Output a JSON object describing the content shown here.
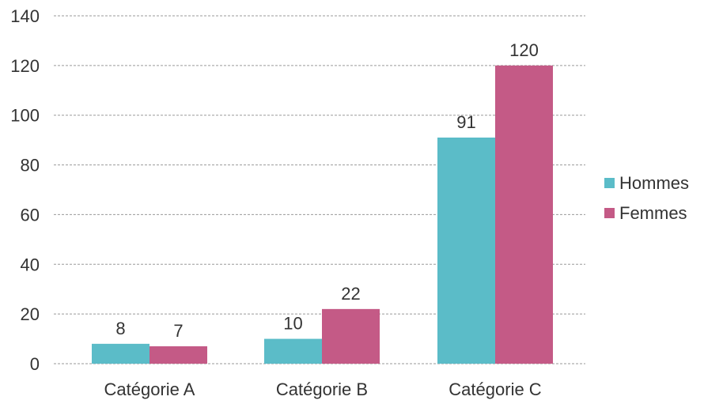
{
  "chart_data": {
    "type": "bar",
    "categories": [
      "Catégorie A",
      "Catégorie B",
      "Catégorie C"
    ],
    "series": [
      {
        "name": "Hommes",
        "values": [
          8,
          10,
          91
        ],
        "color": "#5bbcc8"
      },
      {
        "name": "Femmes",
        "values": [
          7,
          22,
          120
        ],
        "color": "#c45a86"
      }
    ],
    "title": "",
    "xlabel": "",
    "ylabel": "",
    "ylim": [
      0,
      140
    ],
    "yticks": [
      0,
      20,
      40,
      60,
      80,
      100,
      120,
      140
    ],
    "grid": true,
    "legend_position": "right",
    "data_labels": true
  }
}
